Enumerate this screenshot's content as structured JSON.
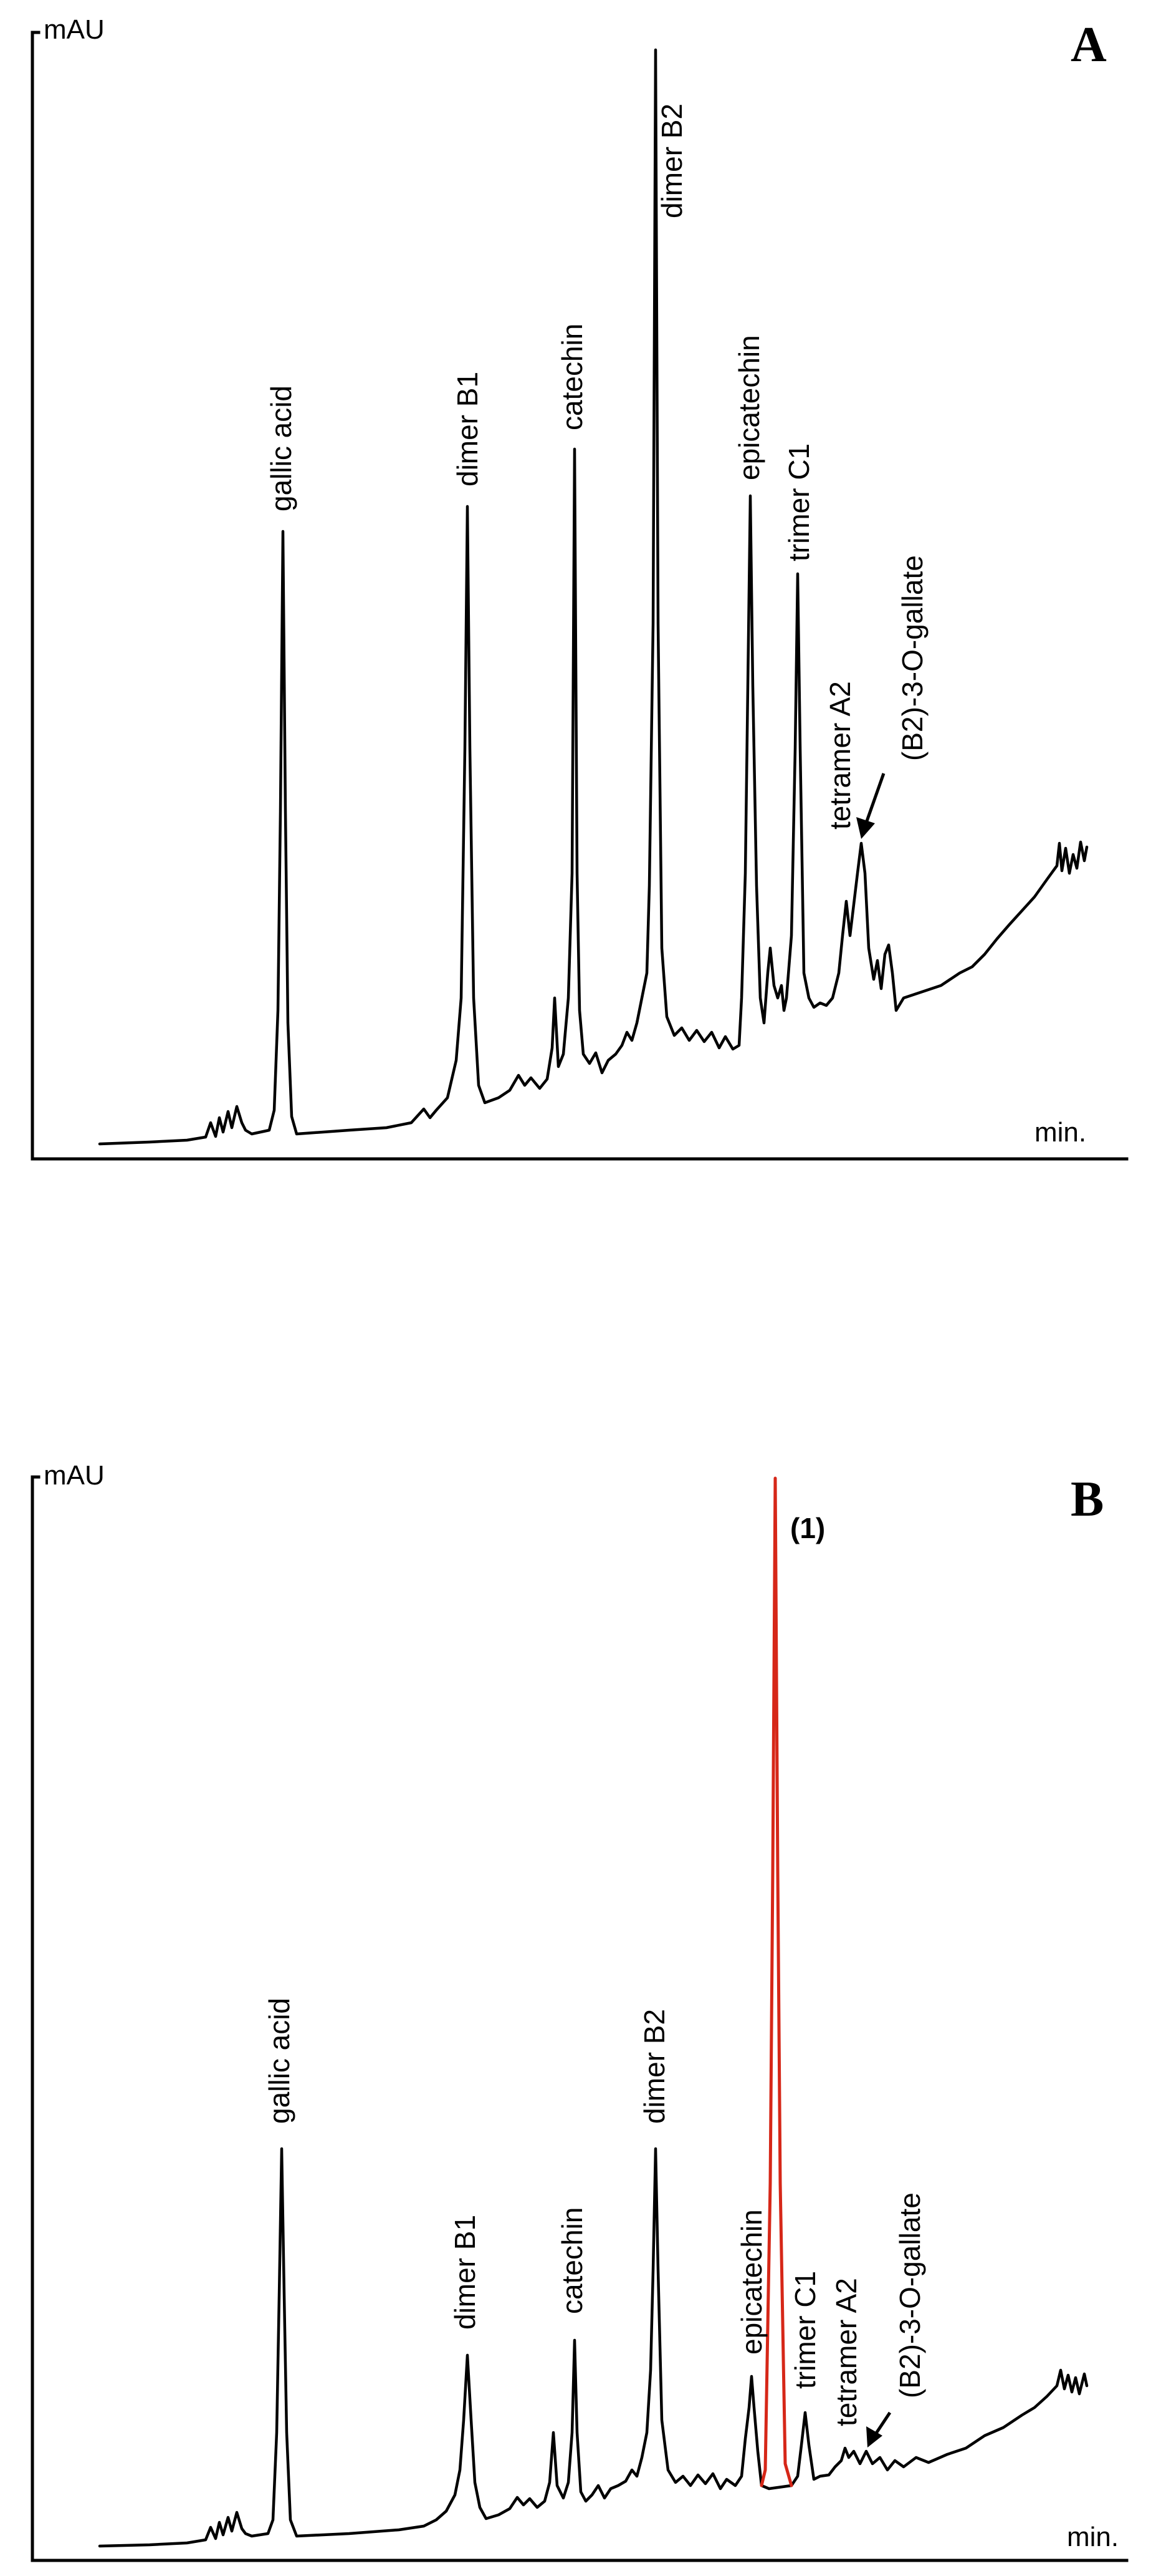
{
  "chart_data": [
    {
      "type": "line",
      "panel": "A",
      "ylabel": "mAU",
      "xlabel": "min.",
      "grid": false,
      "peaks": [
        {
          "label": "gallic acid",
          "rel_height": 0.55
        },
        {
          "label": "dimer B1",
          "rel_height": 0.57
        },
        {
          "label": "catechin",
          "rel_height": 0.64
        },
        {
          "label": "dimer B2",
          "rel_height": 1.0
        },
        {
          "label": "epicatechin",
          "rel_height": 0.61
        },
        {
          "label": "trimer C1",
          "rel_height": 0.51
        },
        {
          "label": "tetramer A2",
          "rel_height": 0.3
        },
        {
          "label": "(B2)-3-O-gallate",
          "rel_height": 0.29
        }
      ]
    },
    {
      "type": "line",
      "panel": "B",
      "ylabel": "mAU",
      "xlabel": "min.",
      "grid": false,
      "highlight": {
        "label": "(1)",
        "color": "#d62718",
        "rel_height": 1.0
      },
      "peaks": [
        {
          "label": "gallic acid",
          "rel_height": 0.35
        },
        {
          "label": "dimer B1",
          "rel_height": 0.16
        },
        {
          "label": "catechin",
          "rel_height": 0.19
        },
        {
          "label": "dimer B2",
          "rel_height": 0.39
        },
        {
          "label": "epicatechin",
          "rel_height": 0.16
        },
        {
          "label": "trimer C1",
          "rel_height": 0.13
        },
        {
          "label": "tetramer A2",
          "rel_height": 0.1
        },
        {
          "label": "(B2)-3-O-gallate",
          "rel_height": 0.09
        }
      ]
    }
  ]
}
